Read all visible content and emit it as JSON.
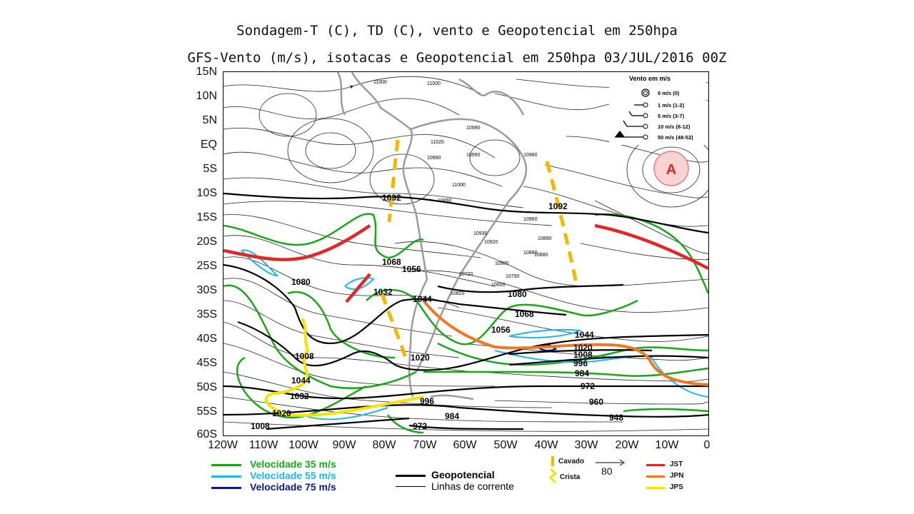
{
  "titles": {
    "line1": "Sondagem-T (C), TD (C), vento e Geopotencial em 250hpa",
    "line2": "GFS-Vento (m/s), isotacas e Geopotencial em 250hpa 03/JUL/2016 00Z"
  },
  "axes": {
    "lat_labels": [
      "15N",
      "10N",
      "5N",
      "EQ",
      "5S",
      "10S",
      "15S",
      "20S",
      "25S",
      "30S",
      "35S",
      "40S",
      "45S",
      "50S",
      "55S",
      "60S"
    ],
    "lon_labels": [
      "120W",
      "110W",
      "100W",
      "90W",
      "80W",
      "70W",
      "60W",
      "50W",
      "40W",
      "30W",
      "20W",
      "10W",
      "0"
    ]
  },
  "wind_legend": {
    "title": "Vento em m/s",
    "items": [
      "0 m/s (0)",
      "1 m/s (1-2)",
      "5 m/s (3-7)",
      "10 m/s (8-12)",
      "50 m/s (48-52)"
    ]
  },
  "map_labels": {
    "anticyclone": "A",
    "geopotential": [
      "1092",
      "1092",
      "1080",
      "1068",
      "1032",
      "1044",
      "1080",
      "1068",
      "1056",
      "1044",
      "1020",
      "1008",
      "996",
      "984",
      "972",
      "960",
      "948",
      "1020",
      "1008",
      "996",
      "984",
      "972",
      "1008",
      "1020",
      "1032",
      "1044",
      "1056"
    ],
    "station_values": [
      "11000",
      "11000",
      "10990",
      "11020",
      "10990",
      "10990",
      "11000",
      "10980",
      "10960",
      "10930",
      "10920",
      "10890",
      "10900",
      "10880",
      "10880",
      "10890",
      "10820",
      "10790",
      "10720",
      "10600"
    ]
  },
  "isotach_legend": [
    {
      "label": "Velocidade 35 m/s",
      "color": "#1aa61a"
    },
    {
      "label": "Velocidade 55 m/s",
      "color": "#1fb7e6"
    },
    {
      "label": "Velocidade 75 m/s",
      "color": "#0a1a80"
    }
  ],
  "line_legend": [
    {
      "label": "Geopotencial"
    },
    {
      "label": "Linhas de corrente"
    }
  ],
  "feature_legend": {
    "cavado": "Cavado",
    "crista": "Crista",
    "scale_value": "80"
  },
  "jet_legend": [
    {
      "label": "JST",
      "color": "#e02828"
    },
    {
      "label": "JPN",
      "color": "#f07820"
    },
    {
      "label": "JPS",
      "color": "#f5e400"
    }
  ],
  "colors": {
    "trough": "#f5b800",
    "jst": "#e02828",
    "jpn": "#f07820",
    "jps": "#f5e400",
    "isotach35": "#1aa61a",
    "isotach55": "#1fb7e6",
    "isotach75": "#0a1a80",
    "anticyclone_fill": "#f9d2d2",
    "anticyclone_text": "#e02828"
  }
}
